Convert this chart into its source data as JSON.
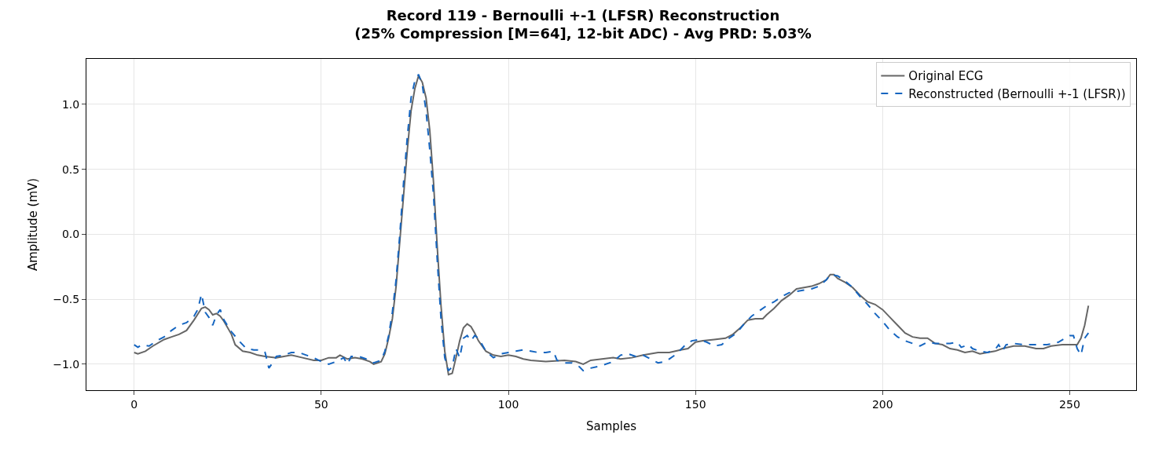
{
  "chart_data": {
    "type": "line",
    "title": "Record 119 - Bernoulli +-1 (LFSR) Reconstruction\n(25% Compression [M=64], 12-bit ADC) - Avg PRD: 5.03%",
    "xlabel": "Samples",
    "ylabel": "Amplitude (mV)",
    "xlim": [
      -12.75,
      267.75
    ],
    "ylim": [
      -1.2,
      1.35
    ],
    "xticks": [
      0,
      50,
      100,
      150,
      200,
      250
    ],
    "yticks": [
      {
        "value": -1,
        "label": "−1.0"
      },
      {
        "value": -0.5,
        "label": "−0.5"
      },
      {
        "value": 0,
        "label": "0.0"
      },
      {
        "value": 0.5,
        "label": "0.5"
      },
      {
        "value": 1,
        "label": "1.0"
      }
    ],
    "grid": true,
    "legend": "top right",
    "series": [
      {
        "name": "Original ECG",
        "color": "#666666",
        "line_style": "solid",
        "x": [
          0,
          1,
          3,
          5,
          8,
          10,
          12,
          14,
          16,
          18,
          19,
          20,
          21,
          22,
          23,
          24,
          26,
          27,
          29,
          31,
          33,
          35,
          38,
          40,
          42,
          45,
          48,
          50,
          52,
          54,
          55,
          57,
          59,
          61,
          63,
          64,
          66,
          67,
          68,
          69,
          70,
          71,
          72,
          73,
          74,
          75,
          76,
          77,
          78,
          79,
          80,
          81,
          82,
          83,
          84,
          85,
          86,
          87,
          88,
          89,
          90,
          91,
          92,
          94,
          96,
          98,
          100,
          102,
          104,
          106,
          110,
          115,
          118,
          120,
          122,
          125,
          128,
          130,
          133,
          136,
          140,
          143,
          146,
          148,
          150,
          152,
          155,
          158,
          160,
          162,
          164,
          166,
          168,
          169,
          171,
          173,
          175,
          177,
          179,
          181,
          183,
          185,
          186,
          187,
          188,
          190,
          192,
          194,
          196,
          198,
          200,
          202,
          204,
          206,
          208,
          210,
          212,
          214,
          216,
          218,
          220,
          222,
          224,
          226,
          228,
          230,
          232,
          235,
          238,
          241,
          243,
          245,
          248,
          250,
          252,
          253,
          254,
          255
        ],
        "values": [
          -0.91,
          -0.92,
          -0.9,
          -0.86,
          -0.81,
          -0.79,
          -0.77,
          -0.74,
          -0.66,
          -0.57,
          -0.56,
          -0.58,
          -0.62,
          -0.61,
          -0.63,
          -0.67,
          -0.77,
          -0.85,
          -0.9,
          -0.91,
          -0.93,
          -0.94,
          -0.95,
          -0.94,
          -0.93,
          -0.95,
          -0.97,
          -0.97,
          -0.95,
          -0.95,
          -0.93,
          -0.96,
          -0.95,
          -0.96,
          -0.98,
          -1.0,
          -0.98,
          -0.92,
          -0.8,
          -0.65,
          -0.4,
          -0.05,
          0.3,
          0.65,
          0.95,
          1.12,
          1.22,
          1.17,
          1.05,
          0.8,
          0.4,
          -0.1,
          -0.55,
          -0.9,
          -1.08,
          -1.07,
          -0.95,
          -0.82,
          -0.72,
          -0.69,
          -0.71,
          -0.76,
          -0.82,
          -0.9,
          -0.93,
          -0.94,
          -0.93,
          -0.94,
          -0.96,
          -0.97,
          -0.98,
          -0.97,
          -0.98,
          -1.0,
          -0.97,
          -0.96,
          -0.95,
          -0.96,
          -0.95,
          -0.93,
          -0.91,
          -0.91,
          -0.89,
          -0.88,
          -0.83,
          -0.82,
          -0.81,
          -0.8,
          -0.77,
          -0.72,
          -0.66,
          -0.65,
          -0.65,
          -0.62,
          -0.57,
          -0.51,
          -0.47,
          -0.42,
          -0.41,
          -0.4,
          -0.38,
          -0.35,
          -0.31,
          -0.31,
          -0.34,
          -0.37,
          -0.41,
          -0.47,
          -0.52,
          -0.54,
          -0.58,
          -0.64,
          -0.7,
          -0.76,
          -0.79,
          -0.8,
          -0.8,
          -0.84,
          -0.85,
          -0.88,
          -0.89,
          -0.91,
          -0.9,
          -0.92,
          -0.91,
          -0.9,
          -0.88,
          -0.86,
          -0.86,
          -0.88,
          -0.88,
          -0.86,
          -0.85,
          -0.85,
          -0.85,
          -0.8,
          -0.7,
          -0.55
        ]
      },
      {
        "name": "Reconstructed (Bernoulli +-1 (LFSR))",
        "color": "#1565c0",
        "line_style": "dashed",
        "x": [
          0,
          1,
          2,
          4,
          6,
          8,
          10,
          12,
          14,
          16,
          17,
          18,
          19,
          20,
          21,
          22,
          23,
          24,
          26,
          28,
          30,
          32,
          34,
          35,
          36,
          37,
          38,
          40,
          42,
          44,
          46,
          48,
          50,
          52,
          54,
          56,
          57,
          58,
          60,
          62,
          64,
          66,
          67,
          68,
          69,
          70,
          71,
          72,
          73,
          74,
          75,
          76,
          77,
          78,
          79,
          80,
          81,
          82,
          83,
          84,
          85,
          86,
          87,
          88,
          89,
          90,
          91,
          92,
          94,
          96,
          98,
          100,
          102,
          104,
          106,
          108,
          110,
          112,
          113,
          115,
          117,
          119,
          120,
          122,
          125,
          128,
          130,
          132,
          134,
          136,
          138,
          140,
          142,
          145,
          147,
          149,
          151,
          153,
          155,
          157,
          159,
          161,
          163,
          165,
          167,
          169,
          171,
          173,
          175,
          177,
          179,
          181,
          183,
          185,
          186,
          188,
          190,
          192,
          194,
          196,
          198,
          200,
          202,
          204,
          206,
          208,
          210,
          212,
          214,
          216,
          218,
          220,
          221,
          222,
          223,
          224,
          226,
          228,
          230,
          231,
          232,
          233,
          235,
          238,
          241,
          244,
          247,
          250,
          251,
          252,
          253,
          254,
          255
        ],
        "values": [
          -0.85,
          -0.87,
          -0.85,
          -0.86,
          -0.82,
          -0.79,
          -0.74,
          -0.7,
          -0.68,
          -0.63,
          -0.58,
          -0.46,
          -0.6,
          -0.64,
          -0.7,
          -0.62,
          -0.58,
          -0.66,
          -0.75,
          -0.82,
          -0.88,
          -0.89,
          -0.89,
          -0.91,
          -1.03,
          -0.99,
          -0.94,
          -0.93,
          -0.91,
          -0.91,
          -0.93,
          -0.95,
          -0.98,
          -1.0,
          -0.98,
          -0.95,
          -1.0,
          -0.94,
          -0.94,
          -0.96,
          -0.99,
          -0.97,
          -0.9,
          -0.78,
          -0.6,
          -0.35,
          0.0,
          0.4,
          0.75,
          1.05,
          1.18,
          1.23,
          1.15,
          0.95,
          0.65,
          0.3,
          -0.2,
          -0.65,
          -0.95,
          -1.05,
          -1.02,
          -0.88,
          -0.95,
          -0.8,
          -0.78,
          -0.82,
          -0.78,
          -0.8,
          -0.9,
          -0.95,
          -0.92,
          -0.91,
          -0.9,
          -0.89,
          -0.9,
          -0.91,
          -0.91,
          -0.9,
          -0.97,
          -0.99,
          -0.99,
          -1.02,
          -1.05,
          -1.03,
          -1.01,
          -0.98,
          -0.93,
          -0.92,
          -0.94,
          -0.93,
          -0.96,
          -0.99,
          -0.98,
          -0.92,
          -0.86,
          -0.82,
          -0.81,
          -0.83,
          -0.86,
          -0.85,
          -0.8,
          -0.76,
          -0.69,
          -0.63,
          -0.59,
          -0.55,
          -0.52,
          -0.48,
          -0.45,
          -0.44,
          -0.43,
          -0.42,
          -0.4,
          -0.35,
          -0.31,
          -0.32,
          -0.36,
          -0.41,
          -0.48,
          -0.54,
          -0.61,
          -0.67,
          -0.74,
          -0.79,
          -0.82,
          -0.84,
          -0.86,
          -0.83,
          -0.84,
          -0.84,
          -0.84,
          -0.83,
          -0.87,
          -0.86,
          -0.85,
          -0.88,
          -0.9,
          -0.91,
          -0.89,
          -0.85,
          -0.9,
          -0.85,
          -0.84,
          -0.85,
          -0.85,
          -0.85,
          -0.83,
          -0.78,
          -0.78,
          -0.88,
          -0.93,
          -0.8,
          -0.76
        ]
      }
    ]
  }
}
